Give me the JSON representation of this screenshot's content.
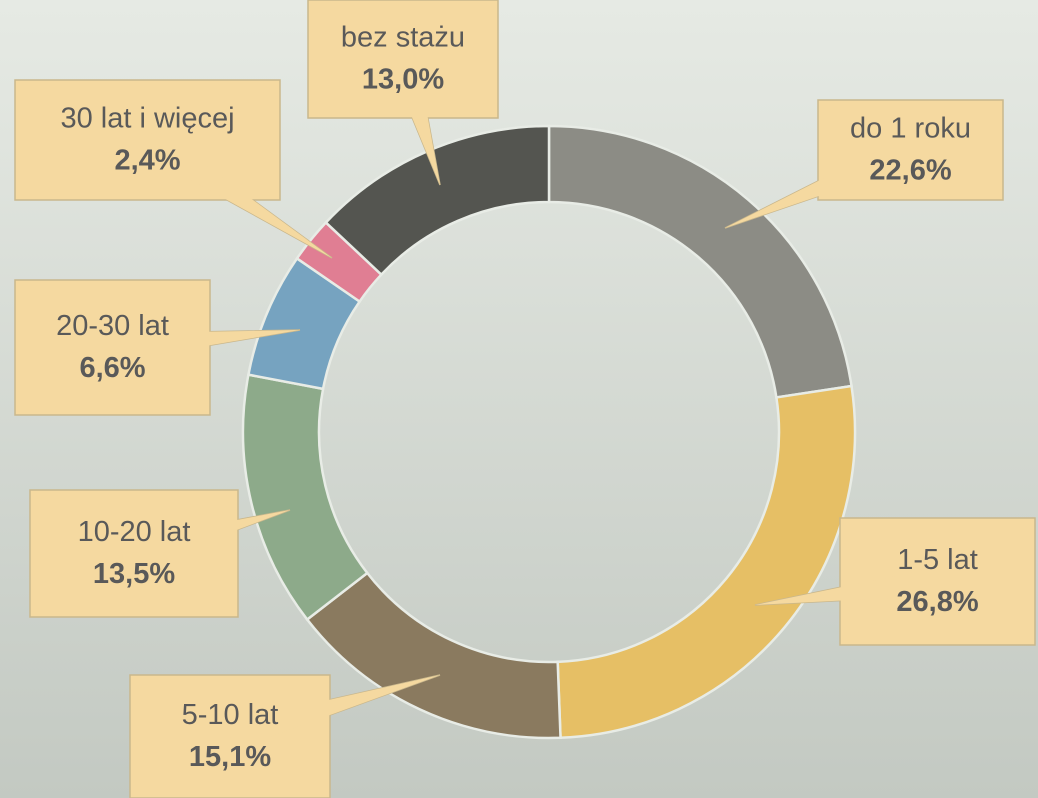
{
  "chart_data": {
    "type": "pie",
    "donut": true,
    "categories": [
      "do 1 roku",
      "1-5 lat",
      "5-10 lat",
      "10-20 lat",
      "20-30 lat",
      "30 lat i więcej",
      "bez stażu"
    ],
    "values": [
      22.6,
      26.8,
      15.1,
      13.5,
      6.6,
      2.4,
      13.0
    ],
    "value_labels": [
      "22,6%",
      "26,8%",
      "15,1%",
      "13,5%",
      "6,6%",
      "2,4%",
      "13,0%"
    ],
    "colors": [
      "#8c8c85",
      "#e6bf65",
      "#8a7a5f",
      "#8daa8a",
      "#76a3c0",
      "#e07e93",
      "#545550"
    ]
  }
}
